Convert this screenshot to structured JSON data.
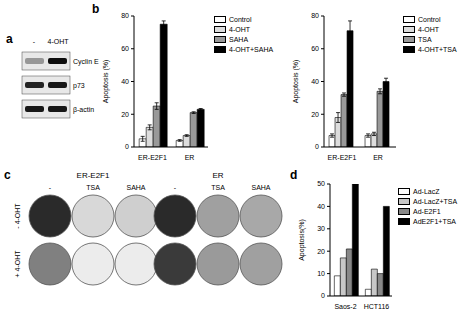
{
  "panel_labels": [
    "a",
    "b",
    "c",
    "d"
  ],
  "blot": {
    "columns": [
      "-",
      "4-OHT"
    ],
    "rows": [
      "Cyclin E",
      "p73",
      "β-actin"
    ]
  },
  "colonies": {
    "groups": [
      "ER-E2F1",
      "ER"
    ],
    "columns": [
      "-",
      "TSA",
      "SAHA"
    ],
    "rows": [
      "- 4-OHT",
      "+ 4-OHT"
    ]
  },
  "chart_data": [
    {
      "type": "bar",
      "y_label": "Apoptosis (%)",
      "categories": [
        "ER-E2F1",
        "ER"
      ],
      "ylim": [
        0,
        80
      ],
      "yticks": [
        0,
        20,
        40,
        60,
        80
      ],
      "series": [
        {
          "name": "Control",
          "color": "#ffffff",
          "values": [
            5,
            4
          ],
          "errors": [
            1.5,
            0.5
          ]
        },
        {
          "name": "4-OHT",
          "color": "#dddddd",
          "values": [
            12,
            7
          ],
          "errors": [
            1.5,
            0.5
          ]
        },
        {
          "name": "SAHA",
          "color": "#999999",
          "values": [
            25,
            21
          ],
          "errors": [
            2,
            0.5
          ]
        },
        {
          "name": "4-OHT+SAHA",
          "color": "#000000",
          "values": [
            75,
            23
          ],
          "errors": [
            2,
            0.5
          ]
        }
      ]
    },
    {
      "type": "bar",
      "y_label": "Apoptosis (%)",
      "categories": [
        "ER-E2F1",
        "ER"
      ],
      "ylim": [
        0,
        80
      ],
      "yticks": [
        0,
        20,
        40,
        60,
        80
      ],
      "series": [
        {
          "name": "Control",
          "color": "#ffffff",
          "values": [
            7,
            7
          ],
          "errors": [
            1,
            1
          ]
        },
        {
          "name": "4-OHT",
          "color": "#dddddd",
          "values": [
            18,
            8
          ],
          "errors": [
            3,
            1
          ]
        },
        {
          "name": "TSA",
          "color": "#999999",
          "values": [
            32,
            34
          ],
          "errors": [
            1,
            1.5
          ]
        },
        {
          "name": "4-OHT+TSA",
          "color": "#000000",
          "values": [
            71,
            40
          ],
          "errors": [
            6,
            2
          ]
        }
      ]
    },
    {
      "type": "bar",
      "y_label": "Apoptosis(%)",
      "categories": [
        "Saos-2",
        "HCT116"
      ],
      "ylim": [
        0,
        50
      ],
      "yticks": [
        0,
        10,
        20,
        30,
        40,
        50
      ],
      "series": [
        {
          "name": "Ad-LacZ",
          "color": "#ffffff",
          "values": [
            9,
            3
          ]
        },
        {
          "name": "Ad-LacZ+TSA",
          "color": "#c8c8c8",
          "values": [
            17,
            12
          ]
        },
        {
          "name": "Ad-E2F1",
          "color": "#888888",
          "values": [
            21,
            10
          ]
        },
        {
          "name": "AdE2F1+TSA",
          "color": "#000000",
          "values": [
            50,
            40
          ]
        }
      ]
    }
  ]
}
